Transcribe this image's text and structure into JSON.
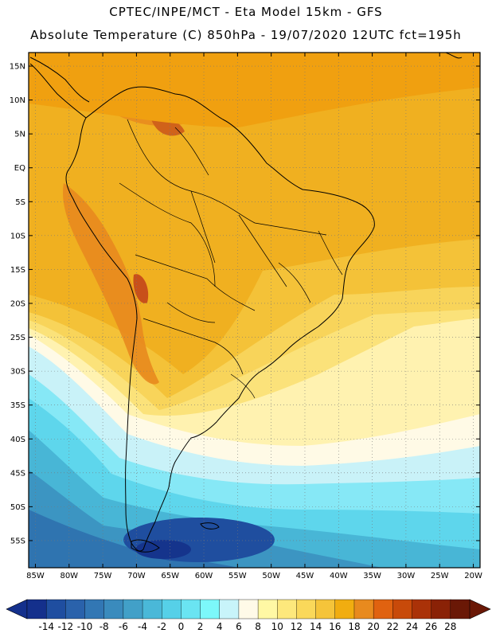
{
  "header": {
    "line1": "CPTEC/INPE/MCT -  Eta Model 15km - GFS",
    "line2": "Absolute Temperature (C) 850hPa - 19/07/2020 12UTC fct=195h"
  },
  "map": {
    "lat_ticks": [
      {
        "label": "15N",
        "value": 15
      },
      {
        "label": "10N",
        "value": 10
      },
      {
        "label": "5N",
        "value": 5
      },
      {
        "label": "EQ",
        "value": 0
      },
      {
        "label": "5S",
        "value": -5
      },
      {
        "label": "10S",
        "value": -10
      },
      {
        "label": "15S",
        "value": -15
      },
      {
        "label": "20S",
        "value": -20
      },
      {
        "label": "25S",
        "value": -25
      },
      {
        "label": "30S",
        "value": -30
      },
      {
        "label": "35S",
        "value": -35
      },
      {
        "label": "40S",
        "value": -40
      },
      {
        "label": "45S",
        "value": -45
      },
      {
        "label": "50S",
        "value": -50
      },
      {
        "label": "55S",
        "value": -55
      }
    ],
    "lon_ticks": [
      {
        "label": "85W",
        "value": -85
      },
      {
        "label": "80W",
        "value": -80
      },
      {
        "label": "75W",
        "value": -75
      },
      {
        "label": "70W",
        "value": -70
      },
      {
        "label": "65W",
        "value": -65
      },
      {
        "label": "60W",
        "value": -60
      },
      {
        "label": "55W",
        "value": -55
      },
      {
        "label": "50W",
        "value": -50
      },
      {
        "label": "45W",
        "value": -45
      },
      {
        "label": "40W",
        "value": -40
      },
      {
        "label": "35W",
        "value": -35
      },
      {
        "label": "30W",
        "value": -30
      },
      {
        "label": "25W",
        "value": -25
      },
      {
        "label": "20W",
        "value": -20
      }
    ],
    "lon_range": [
      -86,
      -19
    ],
    "lat_range": [
      -59,
      17
    ]
  },
  "colorbar": {
    "labels": [
      "-14",
      "-12",
      "-10",
      "-8",
      "-6",
      "-4",
      "-2",
      "0",
      "2",
      "4",
      "6",
      "8",
      "10",
      "12",
      "14",
      "16",
      "18",
      "20",
      "22",
      "24",
      "26",
      "28"
    ],
    "colors": [
      "#14308c",
      "#1f4ea0",
      "#2a62ab",
      "#3277b4",
      "#3a8bbd",
      "#42a0c8",
      "#4ab8d8",
      "#56d0e8",
      "#6ae4f2",
      "#7cf8fa",
      "#c8f4fa",
      "#fffae8",
      "#fff8a4",
      "#fde87c",
      "#fad85a",
      "#f5c43a",
      "#f1ad10",
      "#e88a1e",
      "#e06210",
      "#c84a0a",
      "#aa3208",
      "#8a2206",
      "#6a1806"
    ],
    "min_color": "#14308c",
    "max_color": "#6a1806"
  }
}
